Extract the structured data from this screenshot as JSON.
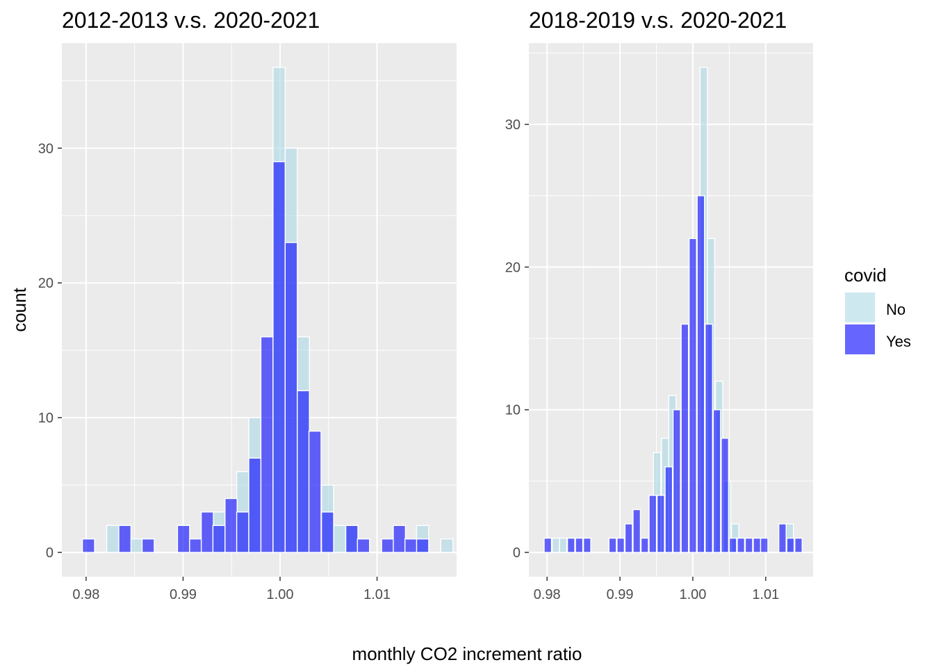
{
  "figure": {
    "ylabel": "count",
    "xlabel": "monthly CO2 increment ratio"
  },
  "legend": {
    "title": "covid",
    "placement": "right",
    "items": [
      {
        "label": "No",
        "color": "#add8e6"
      },
      {
        "label": "Yes",
        "color": "#0000ff"
      }
    ]
  },
  "chart_data": [
    {
      "type": "bar",
      "title": "2012-2013 v.s. 2020-2021",
      "xlim": [
        0.9775,
        1.0182
      ],
      "ylim": [
        -1.8,
        37.8
      ],
      "xticks": [
        0.98,
        0.99,
        1.0,
        1.01
      ],
      "xtick_labels": [
        "0.98",
        "0.99",
        "1.00",
        "1.01"
      ],
      "yticks": [
        0,
        10,
        20,
        30
      ],
      "ytick_labels": [
        "0",
        "10",
        "20",
        "30"
      ],
      "bin_width": 0.00125,
      "grid": true,
      "series": [
        {
          "name": "No",
          "x": [
            0.98275,
            0.9852,
            0.9937,
            0.99615,
            0.9974,
            0.9999,
            1.00115,
            1.0024,
            1.0049,
            1.00615,
            1.0074,
            1.0147,
            1.0172
          ],
          "values": [
            2,
            1,
            3,
            6,
            10,
            36,
            30,
            16,
            5,
            2,
            2,
            2,
            1
          ]
        },
        {
          "name": "Yes",
          "x": [
            0.98025,
            0.984,
            0.9864,
            0.99005,
            0.9913,
            0.9925,
            0.9937,
            0.99495,
            0.99615,
            0.9974,
            0.99865,
            0.9999,
            1.00115,
            1.0024,
            1.0036,
            1.0049,
            1.0074,
            1.0086,
            1.0111,
            1.0123,
            1.0135,
            1.0147
          ],
          "values": [
            1,
            2,
            1,
            2,
            1,
            3,
            2,
            4,
            3,
            7,
            16,
            29,
            23,
            12,
            9,
            3,
            2,
            1,
            1,
            2,
            1,
            1
          ]
        }
      ]
    },
    {
      "type": "bar",
      "title": "2018-2019 v.s. 2020-2021",
      "xlim": [
        0.9775,
        1.0165
      ],
      "ylim": [
        -1.7,
        35.7
      ],
      "xticks": [
        0.98,
        0.99,
        1.0,
        1.01
      ],
      "xtick_labels": [
        "0.98",
        "0.99",
        "1.00",
        "1.01"
      ],
      "yticks": [
        0,
        10,
        20,
        30
      ],
      "ytick_labels": [
        "0",
        "10",
        "20",
        "30"
      ],
      "bin_width": 0.001,
      "grid": true,
      "series": [
        {
          "name": "No",
          "x": [
            0.9812,
            0.9822,
            0.9951,
            0.9962,
            0.9972,
            1.0015,
            1.0025,
            1.0036,
            1.0047,
            1.0058,
            1.0133
          ],
          "values": [
            1,
            1,
            7,
            8,
            11,
            34,
            22,
            12,
            5,
            2,
            2
          ]
        },
        {
          "name": "Yes",
          "x": [
            0.9801,
            0.9833,
            0.9844,
            0.9855,
            0.989,
            0.9901,
            0.9912,
            0.9923,
            0.9934,
            0.9945,
            0.9956,
            0.9967,
            0.9978,
            0.9989,
            1.0,
            1.0011,
            1.0022,
            1.0033,
            1.0044,
            1.0055,
            1.0066,
            1.0077,
            1.0088,
            1.0098,
            1.0123,
            1.0134,
            1.0145
          ],
          "values": [
            1,
            1,
            1,
            1,
            1,
            1,
            2,
            3,
            1,
            4,
            4,
            6,
            10,
            16,
            22,
            25,
            16,
            10,
            8,
            1,
            1,
            1,
            1,
            1,
            2,
            1,
            1
          ]
        }
      ]
    }
  ]
}
